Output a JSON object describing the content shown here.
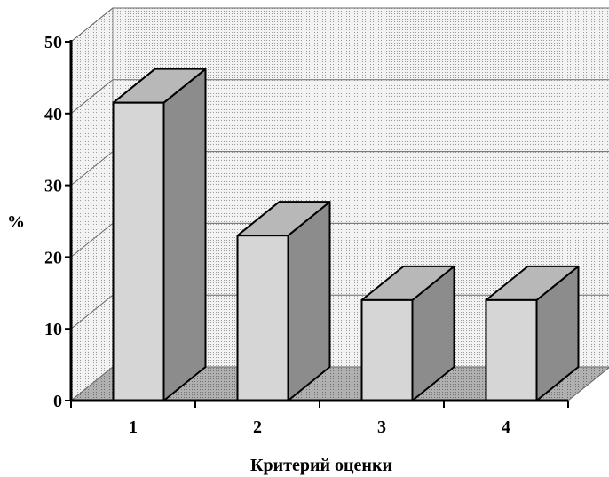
{
  "chart_data": {
    "type": "bar",
    "style": "3d",
    "categories": [
      "1",
      "2",
      "3",
      "4"
    ],
    "values": [
      41.5,
      23,
      14,
      14
    ],
    "xlabel": "Критерий  оценки",
    "ylabel": "%",
    "ylim": [
      0,
      50
    ],
    "yticks": [
      "0",
      "10",
      "20",
      "30",
      "40",
      "50"
    ],
    "grid": true,
    "legend": "none",
    "colors": {
      "bar_front": "#d6d6d6",
      "bar_top": "#b8b8b8",
      "bar_side": "#8c8c8c",
      "back_wall": "#e3e3e3",
      "side_wall": "#e8e8e8",
      "floor": "#a8a8a8",
      "axis": "#000000"
    }
  }
}
